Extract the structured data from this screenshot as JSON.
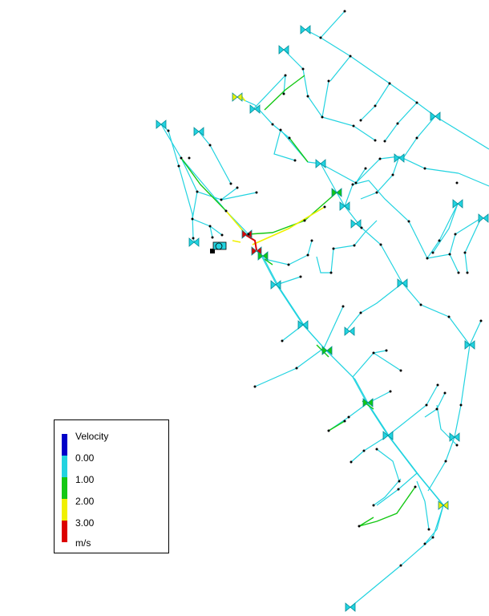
{
  "legend": {
    "title": "Velocity",
    "units": "m/s",
    "breaks": [
      "0.00",
      "1.00",
      "2.00",
      "3.00"
    ],
    "colors": [
      "#0000c8",
      "#22d3e0",
      "#14c814",
      "#f0f000",
      "#dc0000"
    ]
  },
  "pipe_colors": {
    "low": "#22d3e0",
    "mid": "#14c814",
    "high": "#f0f000",
    "max": "#dc0000"
  }
}
